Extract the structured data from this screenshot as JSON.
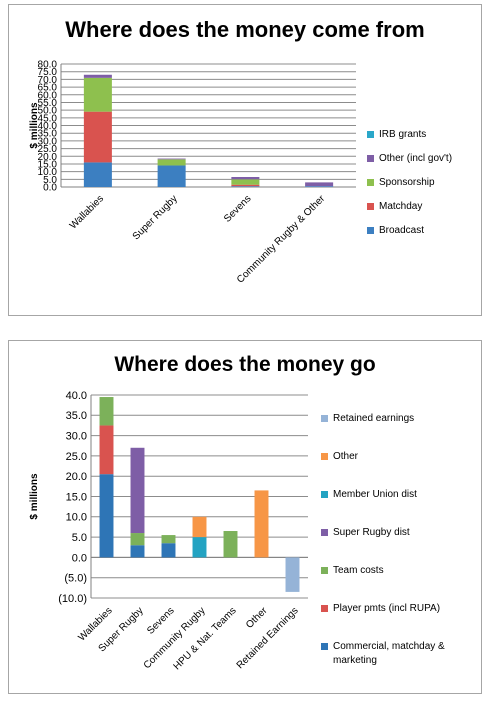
{
  "chart_data": [
    {
      "type": "bar",
      "stacked": true,
      "title": "Where does the money come from",
      "ylabel": "$ millions",
      "xlabel": "",
      "ylim": [
        0,
        80
      ],
      "ytick_step": 5,
      "ytick_labels": [
        "0.0",
        "5.0",
        "10.0",
        "15.0",
        "20.0",
        "25.0",
        "30.0",
        "35.0",
        "40.0",
        "45.0",
        "50.0",
        "55.0",
        "60.0",
        "65.0",
        "70.0",
        "75.0",
        "80.0"
      ],
      "grid": true,
      "legend_position": "right",
      "categories": [
        "Wallabies",
        "Super  Rugby",
        "Sevens",
        "Community Rugby & Other"
      ],
      "series": [
        {
          "name": "Broadcast",
          "color": "#3c7fc1",
          "values": [
            16,
            14,
            0.5,
            0.5
          ]
        },
        {
          "name": "Matchday",
          "color": "#d9534f",
          "values": [
            33,
            0,
            1,
            0
          ]
        },
        {
          "name": "Sponsorship",
          "color": "#8ec04e",
          "values": [
            22,
            4,
            3.5,
            0
          ]
        },
        {
          "name": "Other (incl gov't)",
          "color": "#7e5ea6",
          "values": [
            2,
            0.5,
            1.5,
            2.5
          ]
        },
        {
          "name": "IRB grants",
          "color": "#2aa7c9",
          "values": [
            0,
            0,
            0,
            0
          ]
        }
      ],
      "legend_order": [
        "IRB grants",
        "Other (incl gov't)",
        "Sponsorship",
        "Matchday",
        "Broadcast"
      ]
    },
    {
      "type": "bar",
      "stacked": true,
      "waterfall_style": true,
      "title": "Where does the money go",
      "ylabel": "$ millions",
      "xlabel": "",
      "ylim": [
        -10,
        40
      ],
      "ytick_step": 5,
      "ytick_labels": [
        "(10.0)",
        "(5.0)",
        "0.0",
        "5.0",
        "10.0",
        "15.0",
        "20.0",
        "25.0",
        "30.0",
        "35.0",
        "40.0"
      ],
      "grid": true,
      "legend_position": "right",
      "categories": [
        "Wallabies",
        "Super  Rugby",
        "Sevens",
        "Community Rugby",
        "HPU & Nat. Teams",
        "Other",
        "Retained Earnings"
      ],
      "series": [
        {
          "name": "Commercial, matchday & marketing",
          "color": "#2e75b6",
          "values": [
            [
              0,
              20.5
            ],
            [
              0,
              3
            ],
            [
              0,
              3.5
            ],
            null,
            null,
            null,
            null
          ]
        },
        {
          "name": "Player pmts (incl RUPA)",
          "color": "#d9534f",
          "values": [
            [
              20.5,
              32.5
            ],
            null,
            null,
            null,
            null,
            null,
            null
          ]
        },
        {
          "name": "Team costs",
          "color": "#7cb15a",
          "values": [
            [
              32.5,
              39.5
            ],
            [
              3,
              6
            ],
            [
              3.5,
              5.5
            ],
            null,
            [
              0,
              6.5
            ],
            null,
            null
          ]
        },
        {
          "name": "Super Rugby dist",
          "color": "#7e5ea6",
          "values": [
            null,
            [
              6,
              27
            ],
            null,
            null,
            null,
            null,
            null
          ]
        },
        {
          "name": "Member Union dist",
          "color": "#23a3c2",
          "values": [
            null,
            null,
            null,
            [
              0,
              5
            ],
            null,
            null,
            null
          ]
        },
        {
          "name": "Other",
          "color": "#f79646",
          "values": [
            null,
            null,
            null,
            [
              5,
              10
            ],
            null,
            [
              0,
              16.5
            ],
            null
          ]
        },
        {
          "name": "Retained earnings",
          "color": "#95b3d7",
          "values": [
            null,
            null,
            null,
            null,
            null,
            null,
            [
              -8.5,
              0
            ]
          ]
        }
      ],
      "legend_order": [
        "Retained earnings",
        "Other",
        "Member Union dist",
        "Super Rugby dist",
        "Team costs",
        "Player pmts (incl RUPA)",
        "Commercial, matchday & marketing"
      ]
    }
  ]
}
